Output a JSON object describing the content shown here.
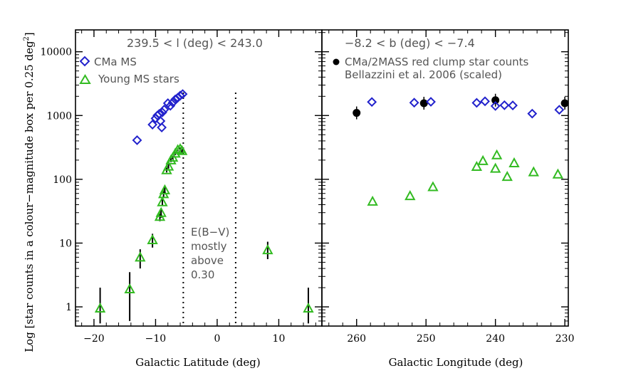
{
  "figure": {
    "ylabel_main": "Log [star counts in a colour−magnitude box per 0.25 deg",
    "ylabel_sup": "2",
    "ylabel_end": "]"
  },
  "left_panel": {
    "xlabel": "Galactic Latitude (deg)",
    "title": "239.5 < l (deg) < 243.0",
    "legend": [
      {
        "name": "CMa MS",
        "marker": "diamond",
        "color": "#2222cc"
      },
      {
        "name": "Young MS stars",
        "marker": "triangle",
        "color": "#33bb22"
      }
    ],
    "annotation": [
      "E(B−V)",
      "mostly",
      "above",
      "0.30"
    ],
    "xticks": [
      -20,
      -10,
      0,
      10
    ],
    "xtick_labels": [
      "−20",
      "−10",
      "0",
      "10"
    ]
  },
  "right_panel": {
    "xlabel": "Galactic Longitude (deg)",
    "title": "−8.2 < b (deg) <  −7.4",
    "legend": [
      {
        "name": "CMa/2MASS red clump star counts",
        "marker": "circle",
        "color": "#000000"
      },
      {
        "name": "Bellazzini et al. 2006 (scaled)",
        "marker": "none",
        "color": "#333333"
      }
    ],
    "xticks": [
      260,
      250,
      240,
      230
    ],
    "xtick_labels": [
      "260",
      "250",
      "240",
      "230"
    ]
  },
  "yticks": [
    1,
    10,
    100,
    1000,
    10000
  ],
  "ytick_labels": [
    "1",
    "10",
    "100",
    "1000",
    "10000"
  ],
  "chart_data": [
    {
      "type": "scatter",
      "panel": "left",
      "xlabel": "Galactic Latitude (deg)",
      "ylabel": "Log [star counts in a colour−magnitude box per 0.25 deg2]",
      "xlim": [
        -23,
        17
      ],
      "ylim": [
        0.5,
        22000
      ],
      "yscale": "log",
      "vlines": [
        -5.5,
        3.0
      ],
      "series": [
        {
          "name": "CMa MS",
          "marker": "diamond",
          "color": "#2222cc",
          "x": [
            -13.0,
            -10.5,
            -10.0,
            -9.7,
            -9.4,
            -9.2,
            -9.0,
            -8.9,
            -8.6,
            -8.0,
            -7.6,
            -7.2,
            -6.8,
            -6.4,
            -6.0,
            -5.6
          ],
          "y": [
            410,
            720,
            900,
            1000,
            1060,
            820,
            650,
            1120,
            1240,
            1560,
            1420,
            1600,
            1790,
            1900,
            2050,
            2170
          ]
        },
        {
          "name": "Young MS stars",
          "marker": "triangle",
          "color": "#33bb22",
          "x": [
            -19.0,
            -14.2,
            -12.5,
            -10.5,
            -9.3,
            -9.1,
            -8.9,
            -8.7,
            -8.5,
            -8.2,
            -7.9,
            -7.5,
            -7.2,
            -6.8,
            -6.4,
            -6.0,
            -5.7,
            8.2,
            14.8
          ],
          "y": [
            0.95,
            1.9,
            6.0,
            11.2,
            26,
            30,
            44,
            59,
            68,
            140,
            160,
            200,
            220,
            255,
            290,
            300,
            280,
            7.8,
            0.95
          ],
          "err_low": [
            0.55,
            0.6,
            4.0,
            8.5,
            22,
            25,
            38,
            52,
            60,
            128,
            148,
            186,
            206,
            240,
            275,
            285,
            265,
            5.6,
            0.55
          ],
          "err_high": [
            2.0,
            3.5,
            8.0,
            14.0,
            30,
            34,
            50,
            66,
            76,
            152,
            172,
            214,
            234,
            270,
            305,
            316,
            295,
            10.5,
            2.0
          ]
        }
      ]
    },
    {
      "type": "scatter",
      "panel": "right",
      "xlabel": "Galactic Longitude (deg)",
      "xlim": [
        265,
        229.5
      ],
      "ylim": [
        0.5,
        22000
      ],
      "yscale": "log",
      "series": [
        {
          "name": "CMa/2MASS red clump star counts",
          "marker": "circle",
          "color": "#000000",
          "x": [
            260.0,
            250.3,
            240.0,
            230.0
          ],
          "y": [
            1100,
            1560,
            1740,
            1560
          ]
        },
        {
          "name": "",
          "marker": "diamond",
          "color": "#2222cc",
          "x": [
            257.8,
            251.7,
            249.3,
            242.7,
            241.5,
            240.0,
            238.7,
            237.5,
            234.7,
            230.8
          ],
          "y": [
            1630,
            1590,
            1640,
            1580,
            1670,
            1410,
            1450,
            1440,
            1070,
            1230
          ]
        },
        {
          "name": "",
          "marker": "triangle",
          "color": "#33bb22",
          "x": [
            257.7,
            252.3,
            249.0,
            242.7,
            241.8,
            240.0,
            239.8,
            238.3,
            237.3,
            234.5,
            231.0
          ],
          "y": [
            45,
            55,
            76,
            158,
            195,
            148,
            240,
            110,
            180,
            130,
            120
          ]
        }
      ]
    }
  ]
}
